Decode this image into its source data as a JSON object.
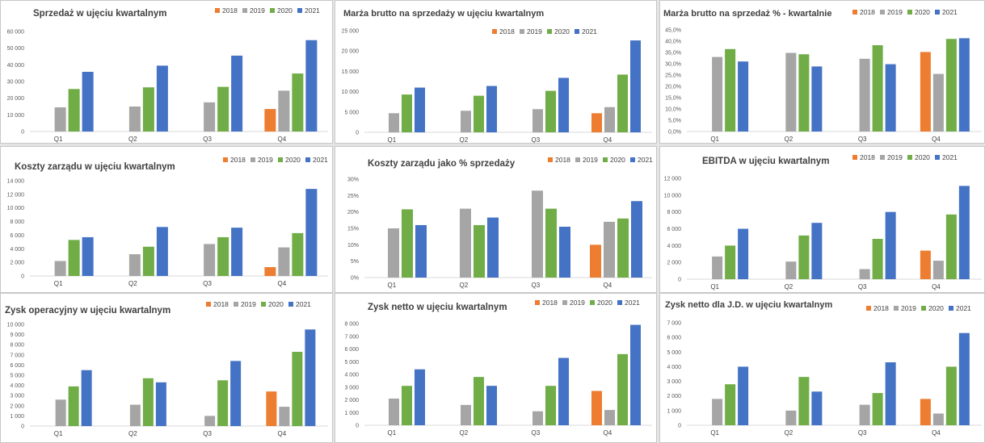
{
  "colors": {
    "2018": "#ED7D31",
    "2019": "#A5A5A5",
    "2020": "#70AD47",
    "2021": "#4472C4"
  },
  "chart_data": [
    {
      "type": "bar",
      "title": "Sprzedaż w ujęciu kwartalnym",
      "categories": [
        "Q1",
        "Q2",
        "Q3",
        "Q4"
      ],
      "yticks": [
        "0",
        "10 000",
        "20 000",
        "30 000",
        "40 000",
        "50 000",
        "60 000"
      ],
      "ylim": [
        0,
        60000
      ],
      "legend": "top-right",
      "series": [
        {
          "name": "2018",
          "values": [
            null,
            null,
            null,
            13500
          ]
        },
        {
          "name": "2019",
          "values": [
            14500,
            15000,
            17500,
            24500
          ]
        },
        {
          "name": "2020",
          "values": [
            25500,
            26500,
            26800,
            34800
          ]
        },
        {
          "name": "2021",
          "values": [
            35800,
            39500,
            45500,
            54800
          ]
        }
      ]
    },
    {
      "type": "bar",
      "title": "Marża brutto na sprzedaży w ujęciu kwartalnym",
      "categories": [
        "Q1",
        "Q2",
        "Q3",
        "Q4"
      ],
      "yticks": [
        "0",
        "5 000",
        "10 000",
        "15 000",
        "20 000",
        "25 000"
      ],
      "ylim": [
        0,
        25000
      ],
      "legend": "top",
      "series": [
        {
          "name": "2018",
          "values": [
            null,
            null,
            null,
            4700
          ]
        },
        {
          "name": "2019",
          "values": [
            4700,
            5300,
            5700,
            6200
          ]
        },
        {
          "name": "2020",
          "values": [
            9300,
            9000,
            10200,
            14200
          ]
        },
        {
          "name": "2021",
          "values": [
            11000,
            11400,
            13400,
            22600
          ]
        }
      ]
    },
    {
      "type": "bar",
      "title": "Marża brutto na sprzedaż % - kwartalnie",
      "categories": [
        "Q1",
        "Q2",
        "Q3",
        "Q4"
      ],
      "yticks": [
        "0,0%",
        "5,0%",
        "10,0%",
        "15,0%",
        "20,0%",
        "25,0%",
        "30,0%",
        "35,0%",
        "40,0%",
        "45,0%"
      ],
      "ylim": [
        0,
        45
      ],
      "legend": "top-right",
      "series": [
        {
          "name": "2018",
          "values": [
            null,
            null,
            null,
            35.2
          ]
        },
        {
          "name": "2019",
          "values": [
            33.0,
            34.8,
            32.2,
            25.5
          ]
        },
        {
          "name": "2020",
          "values": [
            36.5,
            34.2,
            38.2,
            41.0
          ]
        },
        {
          "name": "2021",
          "values": [
            31.0,
            28.8,
            29.8,
            41.3
          ]
        }
      ]
    },
    {
      "type": "bar",
      "title": "Koszty zarządu w ujęciu kwartalnym",
      "categories": [
        "Q1",
        "Q2",
        "Q3",
        "Q4"
      ],
      "yticks": [
        "0",
        "2 000",
        "4 000",
        "6 000",
        "8 000",
        "10 000",
        "12 000",
        "14 000"
      ],
      "ylim": [
        0,
        14000
      ],
      "legend": "top-right",
      "series": [
        {
          "name": "2018",
          "values": [
            null,
            null,
            null,
            1300
          ]
        },
        {
          "name": "2019",
          "values": [
            2200,
            3200,
            4700,
            4200
          ]
        },
        {
          "name": "2020",
          "values": [
            5300,
            4300,
            5700,
            6300
          ]
        },
        {
          "name": "2021",
          "values": [
            5700,
            7200,
            7100,
            12800
          ]
        }
      ]
    },
    {
      "type": "bar",
      "title": "Koszty zarządu jako % sprzedaży",
      "categories": [
        "Q1",
        "Q2",
        "Q3",
        "Q4"
      ],
      "yticks": [
        "0%",
        "5%",
        "10%",
        "15%",
        "20%",
        "25%",
        "30%"
      ],
      "ylim": [
        0,
        30
      ],
      "legend": "top-right",
      "series": [
        {
          "name": "2018",
          "values": [
            null,
            null,
            null,
            10.0
          ]
        },
        {
          "name": "2019",
          "values": [
            15.0,
            21.0,
            26.5,
            17.0
          ]
        },
        {
          "name": "2020",
          "values": [
            20.8,
            16.0,
            21.0,
            18.0
          ]
        },
        {
          "name": "2021",
          "values": [
            16.0,
            18.3,
            15.5,
            23.3
          ]
        }
      ]
    },
    {
      "type": "bar",
      "title": "EBITDA w ujęciu kwartalnym",
      "categories": [
        "Q1",
        "Q2",
        "Q3",
        "Q4"
      ],
      "yticks": [
        "0",
        "2 000",
        "4 000",
        "6 000",
        "8 000",
        "10 000",
        "12 000"
      ],
      "ylim": [
        0,
        12000
      ],
      "legend": "top-right",
      "series": [
        {
          "name": "2018",
          "values": [
            null,
            null,
            null,
            3400
          ]
        },
        {
          "name": "2019",
          "values": [
            2700,
            2100,
            1200,
            2200
          ]
        },
        {
          "name": "2020",
          "values": [
            4000,
            5200,
            4800,
            7700
          ]
        },
        {
          "name": "2021",
          "values": [
            6000,
            6700,
            8000,
            11100
          ]
        }
      ]
    },
    {
      "type": "bar",
      "title": "Zysk operacyjny w ujęciu kwartalnym",
      "categories": [
        "Q1",
        "Q2",
        "Q3",
        "Q4"
      ],
      "yticks": [
        "0",
        "1 000",
        "2 000",
        "3 000",
        "4 000",
        "5 000",
        "6 000",
        "7 000",
        "8 000",
        "9 000",
        "10 000"
      ],
      "ylim": [
        0,
        10000
      ],
      "legend": "top-right",
      "series": [
        {
          "name": "2018",
          "values": [
            null,
            null,
            null,
            3400
          ]
        },
        {
          "name": "2019",
          "values": [
            2600,
            2100,
            1000,
            1900
          ]
        },
        {
          "name": "2020",
          "values": [
            3900,
            4700,
            4500,
            7300
          ]
        },
        {
          "name": "2021",
          "values": [
            5500,
            4300,
            6400,
            9500
          ]
        }
      ]
    },
    {
      "type": "bar",
      "title": "Zysk netto w ujęciu kwartalnym",
      "categories": [
        "Q1",
        "Q2",
        "Q3",
        "Q4"
      ],
      "yticks": [
        "0",
        "1 000",
        "2 000",
        "3 000",
        "4 000",
        "5 000",
        "6 000",
        "7 000",
        "8 000"
      ],
      "ylim": [
        0,
        8000
      ],
      "legend": "top-right",
      "series": [
        {
          "name": "2018",
          "values": [
            null,
            null,
            null,
            2700
          ]
        },
        {
          "name": "2019",
          "values": [
            2100,
            1600,
            1100,
            1200
          ]
        },
        {
          "name": "2020",
          "values": [
            3100,
            3800,
            3100,
            5600
          ]
        },
        {
          "name": "2021",
          "values": [
            4400,
            3100,
            5300,
            7900
          ]
        }
      ]
    },
    {
      "type": "bar",
      "title": "Zysk netto dla J.D. w ujęciu kwartalnym",
      "categories": [
        "Q1",
        "Q2",
        "Q3",
        "Q4"
      ],
      "yticks": [
        "0",
        "1 000",
        "2 000",
        "3 000",
        "4 000",
        "5 000",
        "6 000",
        "7 000"
      ],
      "ylim": [
        0,
        7000
      ],
      "legend": "top-right",
      "series": [
        {
          "name": "2018",
          "values": [
            null,
            null,
            null,
            1800
          ]
        },
        {
          "name": "2019",
          "values": [
            1800,
            1000,
            1400,
            800
          ]
        },
        {
          "name": "2020",
          "values": [
            2800,
            3300,
            2200,
            4000
          ]
        },
        {
          "name": "2021",
          "values": [
            4000,
            2300,
            4300,
            6300
          ]
        }
      ]
    }
  ]
}
